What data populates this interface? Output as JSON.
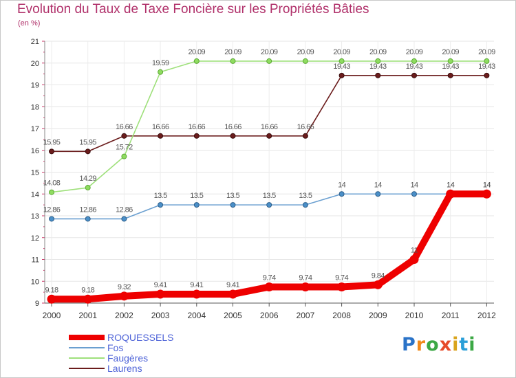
{
  "chart_data": {
    "type": "line",
    "title": "Evolution du Taux de Taxe Foncière sur les Propriétés Bâties",
    "ylabel": "(en %)",
    "xlabel": "",
    "ylim": [
      9,
      21
    ],
    "yticks": [
      "9",
      "10",
      "11",
      "12",
      "13",
      "14",
      "15",
      "16",
      "17",
      "18",
      "19",
      "20",
      "21"
    ],
    "categories": [
      "2000",
      "2001",
      "2002",
      "2003",
      "2004",
      "2005",
      "2006",
      "2007",
      "2008",
      "2009",
      "2010",
      "2011",
      "2012"
    ],
    "series": [
      {
        "name": "ROQUESSELS",
        "color": "#ee0000",
        "values": [
          9.18,
          9.18,
          9.32,
          9.41,
          9.41,
          9.41,
          9.74,
          9.74,
          9.74,
          9.84,
          11,
          14,
          14
        ],
        "labels": [
          "9.18",
          "9.18",
          "9.32",
          "9.41",
          "9.41",
          "9.41",
          "9.74",
          "9.74",
          "9.74",
          "9.84",
          "11",
          "14",
          "14"
        ]
      },
      {
        "name": "Fos",
        "color": "#6a9fd0",
        "values": [
          12.86,
          12.86,
          12.86,
          13.5,
          13.5,
          13.5,
          13.5,
          13.5,
          14,
          14,
          14,
          14,
          14
        ],
        "labels": [
          "12.86",
          "12.86",
          "12.86",
          "13.5",
          "13.5",
          "13.5",
          "13.5",
          "13.5",
          "14",
          "14",
          "14",
          "14",
          "14"
        ]
      },
      {
        "name": "Faugères",
        "color": "#9ee07a",
        "values": [
          14.08,
          14.29,
          15.72,
          19.59,
          20.09,
          20.09,
          20.09,
          20.09,
          20.09,
          20.09,
          20.09,
          20.09,
          20.09
        ],
        "labels": [
          "14.08",
          "14.29",
          "15.72",
          "19.59",
          "20.09",
          "20.09",
          "20.09",
          "20.09",
          "20.09",
          "20.09",
          "20.09",
          "20.09",
          "20.09"
        ]
      },
      {
        "name": "Laurens",
        "color": "#6b1c1c",
        "values": [
          15.95,
          15.95,
          16.66,
          16.66,
          16.66,
          16.66,
          16.66,
          16.66,
          19.43,
          19.43,
          19.43,
          19.43,
          19.43
        ],
        "labels": [
          "15.95",
          "15.95",
          "16.66",
          "16.66",
          "16.66",
          "16.66",
          "16.66",
          "16.66",
          "19.43",
          "19.43",
          "19.43",
          "19.43",
          "19.43"
        ]
      }
    ],
    "legend": [
      "ROQUESSELS",
      "Fos",
      "Faugères",
      "Laurens"
    ]
  },
  "logo": {
    "parts": [
      "P",
      "r",
      "o",
      "x",
      "i",
      "t",
      "i"
    ]
  }
}
